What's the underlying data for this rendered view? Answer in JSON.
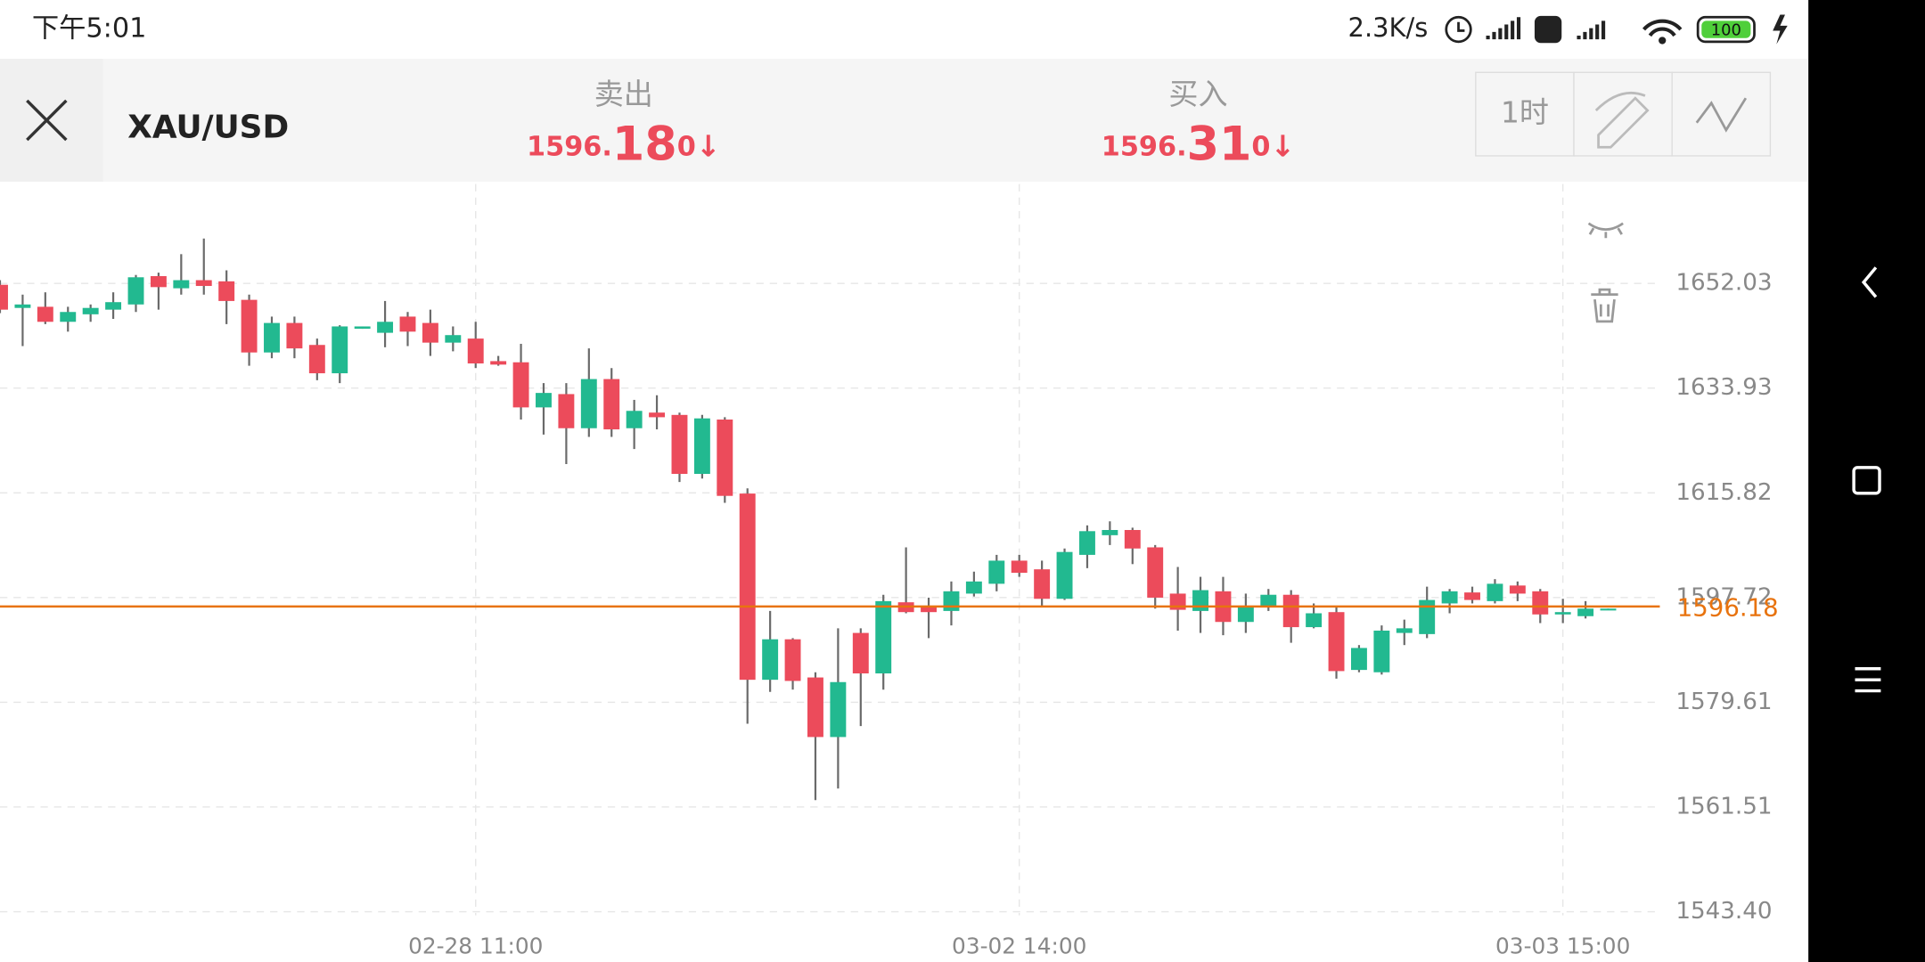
{
  "status_bar": {
    "time": "下午5:01",
    "net_speed": "2.3K/s",
    "battery": "100"
  },
  "header": {
    "symbol": "XAU/USD",
    "sell": {
      "label": "卖出",
      "price_head": "1596.",
      "price_main": "18",
      "price_tail": "0",
      "arrow": "↓"
    },
    "buy": {
      "label": "买入",
      "price_head": "1596.",
      "price_main": "31",
      "price_tail": "0",
      "arrow": "↓"
    },
    "period": "1时"
  },
  "chart_data": {
    "type": "candlestick",
    "categories": [
      null,
      null,
      null,
      null,
      null,
      null,
      null,
      null,
      null,
      null,
      null,
      null,
      null,
      null,
      null,
      null,
      null,
      null,
      null,
      null,
      null,
      "02-28 11:00",
      null,
      null,
      null,
      null,
      null,
      null,
      null,
      null,
      null,
      null,
      null,
      null,
      null,
      null,
      null,
      null,
      null,
      null,
      null,
      null,
      null,
      null,
      null,
      "03-02 14:00",
      null,
      null,
      null,
      null,
      null,
      null,
      null,
      null,
      null,
      null,
      null,
      null,
      null,
      null,
      null,
      null,
      null,
      null,
      null,
      null,
      null,
      null,
      null,
      "03-03 15:00",
      null,
      null
    ],
    "open": [
      1651.8,
      1647.8,
      1648.0,
      1645.4,
      1646.7,
      1647.5,
      1648.4,
      1653.3,
      1651.2,
      1652.6,
      1652.4,
      1649.2,
      1640.1,
      1645.2,
      1641.4,
      1636.5,
      1644.2,
      1643.5,
      1646.3,
      1645.2,
      1641.8,
      1642.5,
      1638.6,
      1638.4,
      1630.6,
      1632.9,
      1627.0,
      1635.5,
      1627.0,
      1629.7,
      1629.3,
      1619.1,
      1628.5,
      1615.7,
      1583.5,
      1590.5,
      1583.9,
      1573.6,
      1591.6,
      1584.6,
      1596.9,
      1596.0,
      1595.4,
      1598.4,
      1600.1,
      1604.1,
      1602.6,
      1597.5,
      1605.1,
      1608.5,
      1609.4,
      1606.4,
      1598.4,
      1595.4,
      1598.8,
      1593.5,
      1596.0,
      1598.2,
      1592.6,
      1595.2,
      1585.2,
      1584.8,
      1591.6,
      1591.4,
      1596.7,
      1598.6,
      1597.1,
      1599.8,
      1598.8,
      1594.8,
      1594.5,
      1595.6
    ],
    "high": [
      1652.6,
      1650.1,
      1650.5,
      1648.0,
      1648.4,
      1650.5,
      1653.5,
      1653.9,
      1657.1,
      1659.8,
      1654.3,
      1650.1,
      1646.3,
      1646.3,
      1642.5,
      1644.8,
      1644.6,
      1649.0,
      1647.1,
      1647.5,
      1644.6,
      1645.4,
      1639.5,
      1641.6,
      1634.8,
      1634.8,
      1640.8,
      1637.4,
      1631.9,
      1632.7,
      1629.7,
      1629.3,
      1628.9,
      1616.6,
      1595.4,
      1590.7,
      1584.8,
      1592.4,
      1592.4,
      1598.2,
      1606.4,
      1597.7,
      1600.5,
      1602.2,
      1605.1,
      1605.1,
      1604.1,
      1606.2,
      1610.2,
      1610.9,
      1609.8,
      1606.8,
      1603.0,
      1601.3,
      1601.3,
      1598.4,
      1599.2,
      1599.0,
      1596.7,
      1596.0,
      1589.5,
      1592.9,
      1593.9,
      1599.6,
      1599.2,
      1599.6,
      1600.9,
      1600.5,
      1599.2,
      1597.5,
      1597.1,
      1595.8
    ],
    "low": [
      1646.9,
      1641.2,
      1645.0,
      1643.7,
      1645.4,
      1645.9,
      1647.1,
      1647.5,
      1650.1,
      1650.1,
      1645.0,
      1637.8,
      1639.1,
      1639.1,
      1635.3,
      1634.8,
      1644.2,
      1641.0,
      1641.2,
      1639.5,
      1640.3,
      1637.4,
      1637.8,
      1628.5,
      1625.9,
      1620.8,
      1625.5,
      1625.5,
      1623.4,
      1626.8,
      1617.7,
      1618.3,
      1614.1,
      1575.9,
      1581.4,
      1581.8,
      1562.7,
      1564.7,
      1575.5,
      1581.8,
      1595.0,
      1590.7,
      1592.9,
      1597.9,
      1598.8,
      1601.3,
      1596.2,
      1597.3,
      1602.8,
      1606.8,
      1603.5,
      1595.8,
      1592.0,
      1591.6,
      1591.2,
      1591.6,
      1595.4,
      1589.9,
      1592.4,
      1583.7,
      1584.8,
      1584.4,
      1589.5,
      1590.7,
      1595.0,
      1596.7,
      1596.7,
      1597.1,
      1593.3,
      1593.3,
      1594.1,
      1595.6
    ],
    "close": [
      1647.5,
      1648.4,
      1645.4,
      1647.1,
      1647.8,
      1648.8,
      1653.1,
      1651.4,
      1652.6,
      1651.6,
      1649.0,
      1640.1,
      1645.2,
      1640.8,
      1636.5,
      1644.6,
      1644.6,
      1645.4,
      1643.7,
      1641.8,
      1643.1,
      1638.2,
      1638.0,
      1630.6,
      1633.1,
      1627.0,
      1635.5,
      1626.8,
      1630.0,
      1628.9,
      1619.1,
      1628.7,
      1615.3,
      1583.5,
      1590.5,
      1583.3,
      1573.6,
      1583.1,
      1584.6,
      1597.1,
      1595.2,
      1595.2,
      1598.8,
      1600.5,
      1604.1,
      1602.0,
      1597.5,
      1605.6,
      1609.2,
      1609.4,
      1606.2,
      1597.7,
      1595.6,
      1599.0,
      1593.5,
      1596.2,
      1598.2,
      1592.6,
      1595.0,
      1585.0,
      1589.0,
      1592.0,
      1592.4,
      1597.3,
      1598.8,
      1597.3,
      1600.1,
      1598.4,
      1594.8,
      1595.2,
      1595.8,
      1595.8
    ],
    "up_color": "#22b990",
    "down_color": "#ec4b5b",
    "ylim": [
      1539.79,
      1669.22
    ],
    "yticks": [
      {
        "value": 1543.4,
        "label": "1543.40"
      },
      1561.51,
      1579.61,
      1597.72,
      1615.82,
      1633.93,
      1652.03
    ],
    "grid": true,
    "current_price": {
      "value": 1596.18,
      "color": "#e8730e"
    }
  }
}
